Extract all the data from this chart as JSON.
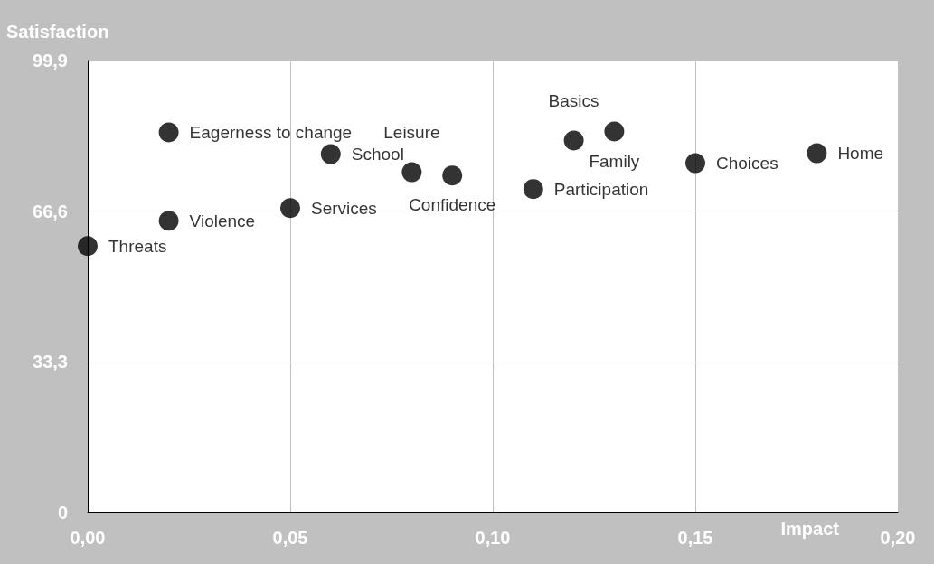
{
  "chart_data": {
    "type": "scatter",
    "xlabel": "Impact",
    "ylabel": "Satisfaction",
    "x": [
      0.0,
      0.02,
      0.02,
      0.05,
      0.06,
      0.08,
      0.09,
      0.11,
      0.12,
      0.13,
      0.15,
      0.18
    ],
    "series": [
      {
        "color": "#000000",
        "values": [
          58.9,
          64.5,
          84.0,
          67.3,
          79.2,
          75.2,
          74.5,
          71.5,
          82.2,
          84.2,
          77.2,
          79.4
        ]
      }
    ],
    "annotations": [
      {
        "text": "Threats",
        "x": 0.0,
        "y": 58.9
      },
      {
        "text": "Violence",
        "x": 0.02,
        "y": 64.5
      },
      {
        "text": "Eagerness to change",
        "x": 0.02,
        "y": 84.0
      },
      {
        "text": "Services",
        "x": 0.05,
        "y": 67.3
      },
      {
        "text": "School",
        "x": 0.06,
        "y": 79.2
      },
      {
        "text": "Leisure",
        "x": 0.08,
        "y": 75.2
      },
      {
        "text": "Confidence",
        "x": 0.09,
        "y": 74.5
      },
      {
        "text": "Participation",
        "x": 0.11,
        "y": 71.5
      },
      {
        "text": "Basics",
        "x": 0.12,
        "y": 82.2
      },
      {
        "text": "Family",
        "x": 0.13,
        "y": 84.2
      },
      {
        "text": "Choices",
        "x": 0.15,
        "y": 77.2
      },
      {
        "text": "Home",
        "x": 0.18,
        "y": 79.4
      }
    ],
    "xlim": [
      0,
      0.2
    ],
    "xticks": [
      {
        "value": 0,
        "label": "0,00"
      },
      {
        "value": 0.05,
        "label": "0,05"
      },
      {
        "value": 0.1,
        "label": "0,10"
      },
      {
        "value": 0.15,
        "label": "0,15"
      },
      {
        "value": 0.2,
        "label": "0,20"
      }
    ],
    "ylim": [
      0,
      99.9
    ],
    "yticks": [
      0,
      {
        "value": 33.3,
        "label": "33,3"
      },
      {
        "value": 66.6,
        "label": "66,6"
      },
      {
        "value": 99.9,
        "label": "99,9"
      }
    ],
    "grid": true,
    "marker": "circle"
  }
}
